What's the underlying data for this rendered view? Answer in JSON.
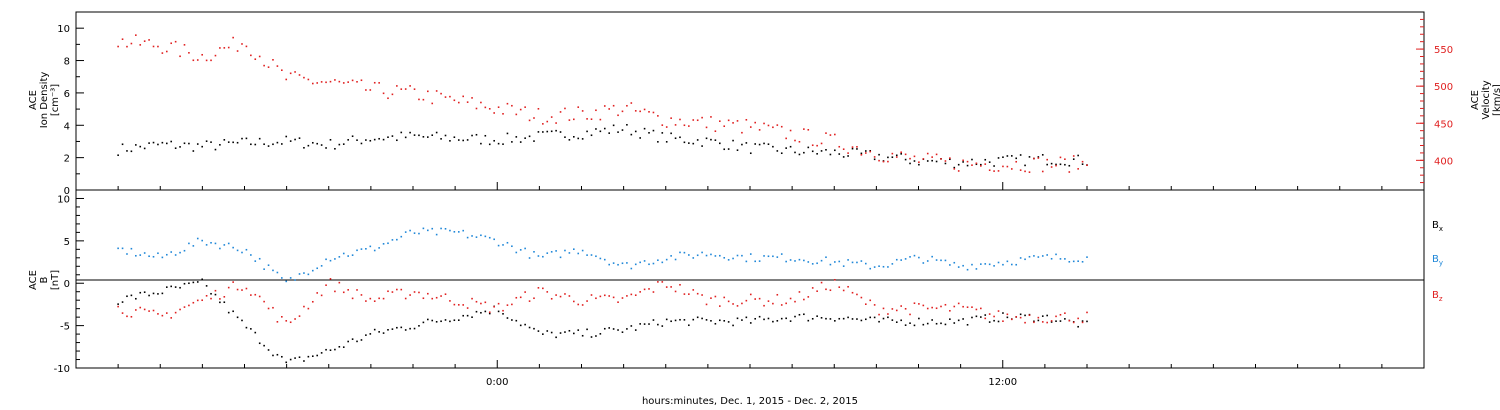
{
  "colors": {
    "black": "#000000",
    "red": "#e02020",
    "blue": "#1f87d8"
  },
  "xaxis": {
    "label": "hours:minutes, Dec.  1, 2015 - Dec.  2, 2015",
    "ticks": [
      "0:00",
      "12:00"
    ]
  },
  "chart_data": [
    {
      "type": "scatter",
      "panel": "plasma",
      "ylabel_left": [
        "ACE",
        "Ion Density",
        "[cm⁻³]"
      ],
      "ylabel_right": [
        "ACE",
        "Velocity",
        "[km/s]"
      ],
      "x_range_hours": [
        -10,
        22
      ],
      "ylim_left": [
        0,
        11
      ],
      "ylim_right": [
        360,
        600
      ],
      "yticks_left": [
        "0",
        "2",
        "4",
        "6",
        "8",
        "10"
      ],
      "yticks_right": [
        "400",
        "450",
        "500",
        "550"
      ],
      "series": [
        {
          "name": "Ion Density",
          "axis": "left",
          "color": "black",
          "x": [
            -9.0,
            -8.0,
            -7.0,
            -6.0,
            -5.0,
            -4.0,
            -3.0,
            -2.0,
            -1.0,
            0.0,
            1.0,
            2.0,
            3.0,
            4.0,
            5.0,
            6.0,
            7.0,
            8.0,
            9.0,
            10.0,
            11.0,
            12.0,
            13.0,
            14.0
          ],
          "y": [
            2.5,
            2.8,
            2.7,
            2.9,
            3.0,
            2.8,
            3.2,
            3.3,
            3.2,
            3.1,
            3.3,
            3.5,
            3.8,
            3.2,
            3.0,
            2.6,
            2.4,
            2.3,
            2.1,
            1.8,
            1.7,
            1.8,
            1.9,
            1.8
          ]
        },
        {
          "name": "Velocity",
          "axis": "right",
          "color": "red",
          "x": [
            -9.0,
            -8.0,
            -7.0,
            -6.0,
            -5.0,
            -4.0,
            -3.0,
            -2.0,
            -1.0,
            0.0,
            1.0,
            2.0,
            3.0,
            4.0,
            5.0,
            6.0,
            7.0,
            8.0,
            9.0,
            10.0,
            11.0,
            12.0,
            13.0,
            14.0
          ],
          "y": [
            560,
            555,
            540,
            560,
            510,
            505,
            495,
            490,
            480,
            470,
            460,
            462,
            470,
            455,
            450,
            445,
            435,
            425,
            410,
            400,
            395,
            395,
            395,
            395
          ]
        }
      ]
    },
    {
      "type": "scatter",
      "panel": "magnetic field",
      "ylabel": [
        "ACE",
        "B",
        "[nT]"
      ],
      "x_range_hours": [
        -10,
        22
      ],
      "ylim": [
        -10,
        11
      ],
      "yticks": [
        "-10",
        "-5",
        "0",
        "5",
        "10"
      ],
      "legend_position": "right",
      "series": [
        {
          "name": "B",
          "sub": "x",
          "color": "black",
          "x": [
            -9.0,
            -8.0,
            -7.0,
            -6.0,
            -5.0,
            -4.0,
            -3.0,
            -2.0,
            -1.0,
            0.0,
            1.0,
            2.0,
            3.0,
            4.0,
            5.0,
            6.0,
            7.0,
            8.0,
            9.0,
            10.0,
            11.0,
            12.0,
            13.0,
            14.0
          ],
          "y": [
            -2,
            -1,
            0,
            -5,
            -9.5,
            -8,
            -6,
            -5,
            -4,
            -3,
            -6,
            -6,
            -5.5,
            -4.5,
            -4.5,
            -4.5,
            -4,
            -4,
            -4.5,
            -4.5,
            -4.5,
            -4,
            -4,
            -5
          ]
        },
        {
          "name": "B",
          "sub": "y",
          "color": "blue",
          "x": [
            -9.0,
            -8.0,
            -7.0,
            -6.0,
            -5.0,
            -4.0,
            -3.0,
            -2.0,
            -1.0,
            0.0,
            1.0,
            2.0,
            3.0,
            4.0,
            5.0,
            6.0,
            7.0,
            8.0,
            9.0,
            10.0,
            11.0,
            12.0,
            13.0,
            14.0
          ],
          "y": [
            4,
            3,
            5,
            4,
            0,
            3,
            4,
            6,
            6,
            5,
            3,
            4,
            2,
            3,
            3.5,
            3,
            3,
            2.5,
            2,
            3,
            2,
            2.5,
            3,
            3
          ]
        },
        {
          "name": "B",
          "sub": "z",
          "color": "red",
          "x": [
            -9.0,
            -8.0,
            -7.0,
            -6.0,
            -5.0,
            -4.0,
            -3.0,
            -2.0,
            -1.0,
            0.0,
            1.0,
            2.0,
            3.0,
            4.0,
            5.0,
            6.0,
            7.0,
            8.0,
            9.0,
            10.0,
            11.0,
            12.0,
            13.0,
            14.0
          ],
          "y": [
            -3,
            -4,
            -2,
            0,
            -5,
            0,
            -2,
            -1,
            -2,
            -3,
            -1,
            -2,
            -2,
            0,
            -2,
            -2,
            -2,
            0,
            -3,
            -3,
            -3,
            -4,
            -4,
            -4
          ]
        }
      ]
    }
  ]
}
